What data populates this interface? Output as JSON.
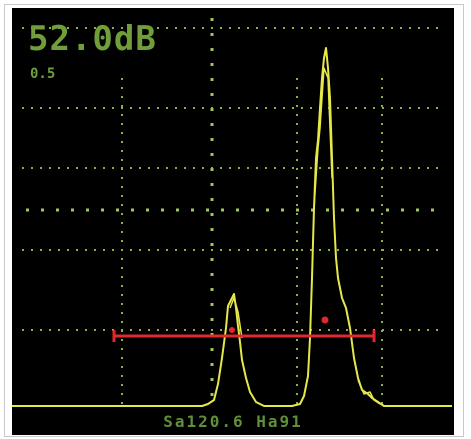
{
  "header": {
    "gain": "52.0dB",
    "range": "0.5"
  },
  "status": {
    "readout": "Sa120.6  Ha91"
  },
  "colors": {
    "background": "#000000",
    "grid": "#8bb04a",
    "waveform": "#e6e84a",
    "gate": "#e0292a",
    "text": "#6f9e3a"
  },
  "icons": {
    "gate_marker": "red-dot-marker"
  }
}
